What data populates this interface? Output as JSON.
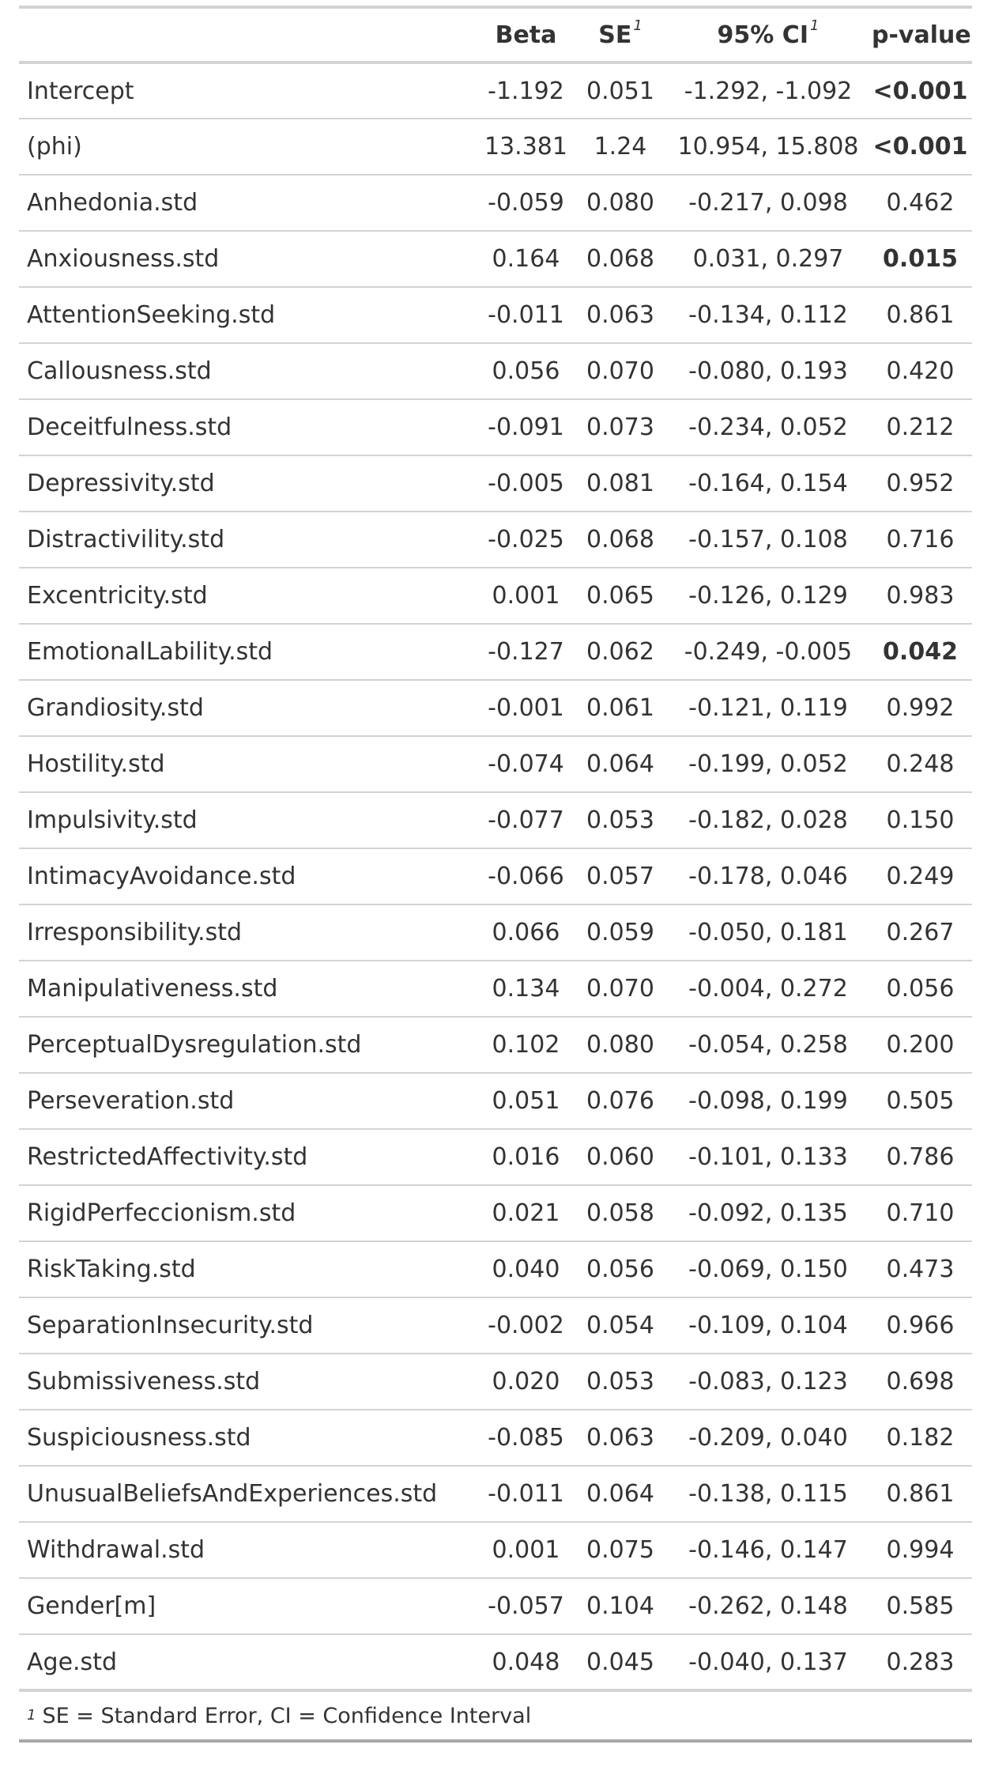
{
  "header": {
    "variable": "",
    "beta": "Beta",
    "se": "SE",
    "se_note": "1",
    "ci": "95% CI",
    "ci_note": "1",
    "p": "p-value"
  },
  "rows": [
    {
      "var": "Intercept",
      "beta": "-1.192",
      "se": "0.051",
      "ci": "-1.292, -1.092",
      "p": "<0.001",
      "bold": true
    },
    {
      "var": "(phi)",
      "beta": "13.381",
      "se": "1.24",
      "ci": "10.954, 15.808",
      "p": "<0.001",
      "bold": true
    },
    {
      "var": "Anhedonia.std",
      "beta": "-0.059",
      "se": "0.080",
      "ci": "-0.217, 0.098",
      "p": "0.462",
      "bold": false
    },
    {
      "var": "Anxiousness.std",
      "beta": "0.164",
      "se": "0.068",
      "ci": "0.031, 0.297",
      "p": "0.015",
      "bold": true
    },
    {
      "var": "AttentionSeeking.std",
      "beta": "-0.011",
      "se": "0.063",
      "ci": "-0.134, 0.112",
      "p": "0.861",
      "bold": false
    },
    {
      "var": "Callousness.std",
      "beta": "0.056",
      "se": "0.070",
      "ci": "-0.080, 0.193",
      "p": "0.420",
      "bold": false
    },
    {
      "var": "Deceitfulness.std",
      "beta": "-0.091",
      "se": "0.073",
      "ci": "-0.234, 0.052",
      "p": "0.212",
      "bold": false
    },
    {
      "var": "Depressivity.std",
      "beta": "-0.005",
      "se": "0.081",
      "ci": "-0.164, 0.154",
      "p": "0.952",
      "bold": false
    },
    {
      "var": "Distractivility.std",
      "beta": "-0.025",
      "se": "0.068",
      "ci": "-0.157, 0.108",
      "p": "0.716",
      "bold": false
    },
    {
      "var": "Excentricity.std",
      "beta": "0.001",
      "se": "0.065",
      "ci": "-0.126, 0.129",
      "p": "0.983",
      "bold": false
    },
    {
      "var": "EmotionalLability.std",
      "beta": "-0.127",
      "se": "0.062",
      "ci": "-0.249, -0.005",
      "p": "0.042",
      "bold": true
    },
    {
      "var": "Grandiosity.std",
      "beta": "-0.001",
      "se": "0.061",
      "ci": "-0.121, 0.119",
      "p": "0.992",
      "bold": false
    },
    {
      "var": "Hostility.std",
      "beta": "-0.074",
      "se": "0.064",
      "ci": "-0.199, 0.052",
      "p": "0.248",
      "bold": false
    },
    {
      "var": "Impulsivity.std",
      "beta": "-0.077",
      "se": "0.053",
      "ci": "-0.182, 0.028",
      "p": "0.150",
      "bold": false
    },
    {
      "var": "IntimacyAvoidance.std",
      "beta": "-0.066",
      "se": "0.057",
      "ci": "-0.178, 0.046",
      "p": "0.249",
      "bold": false
    },
    {
      "var": "Irresponsibility.std",
      "beta": "0.066",
      "se": "0.059",
      "ci": "-0.050, 0.181",
      "p": "0.267",
      "bold": false
    },
    {
      "var": "Manipulativeness.std",
      "beta": "0.134",
      "se": "0.070",
      "ci": "-0.004, 0.272",
      "p": "0.056",
      "bold": false
    },
    {
      "var": "PerceptualDysregulation.std",
      "beta": "0.102",
      "se": "0.080",
      "ci": "-0.054, 0.258",
      "p": "0.200",
      "bold": false
    },
    {
      "var": "Perseveration.std",
      "beta": "0.051",
      "se": "0.076",
      "ci": "-0.098, 0.199",
      "p": "0.505",
      "bold": false
    },
    {
      "var": "RestrictedAffectivity.std",
      "beta": "0.016",
      "se": "0.060",
      "ci": "-0.101, 0.133",
      "p": "0.786",
      "bold": false
    },
    {
      "var": "RigidPerfeccionism.std",
      "beta": "0.021",
      "se": "0.058",
      "ci": "-0.092, 0.135",
      "p": "0.710",
      "bold": false
    },
    {
      "var": "RiskTaking.std",
      "beta": "0.040",
      "se": "0.056",
      "ci": "-0.069, 0.150",
      "p": "0.473",
      "bold": false
    },
    {
      "var": "SeparationInsecurity.std",
      "beta": "-0.002",
      "se": "0.054",
      "ci": "-0.109, 0.104",
      "p": "0.966",
      "bold": false
    },
    {
      "var": "Submissiveness.std",
      "beta": "0.020",
      "se": "0.053",
      "ci": "-0.083, 0.123",
      "p": "0.698",
      "bold": false
    },
    {
      "var": "Suspiciousness.std",
      "beta": "-0.085",
      "se": "0.063",
      "ci": "-0.209, 0.040",
      "p": "0.182",
      "bold": false
    },
    {
      "var": "UnusualBeliefsAndExperiences.std",
      "beta": "-0.011",
      "se": "0.064",
      "ci": "-0.138, 0.115",
      "p": "0.861",
      "bold": false
    },
    {
      "var": "Withdrawal.std",
      "beta": "0.001",
      "se": "0.075",
      "ci": "-0.146, 0.147",
      "p": "0.994",
      "bold": false
    },
    {
      "var": "Gender[m]",
      "beta": "-0.057",
      "se": "0.104",
      "ci": "-0.262, 0.148",
      "p": "0.585",
      "bold": false
    },
    {
      "var": "Age.std",
      "beta": "0.048",
      "se": "0.045",
      "ci": "-0.040, 0.137",
      "p": "0.283",
      "bold": false
    }
  ],
  "footnote": {
    "mark": "1",
    "text": "SE = Standard Error, CI = Confidence Interval"
  }
}
